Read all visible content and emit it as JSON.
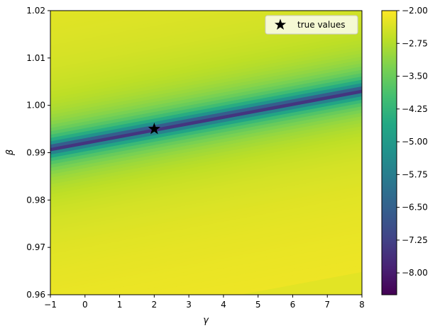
{
  "chart_data": {
    "type": "contour",
    "xlabel": "γ",
    "ylabel": "β",
    "xlim": [
      -1,
      8
    ],
    "ylim": [
      0.96,
      1.02
    ],
    "x_ticks": [
      {
        "value": -1,
        "label": "−1"
      },
      {
        "value": 0,
        "label": "0"
      },
      {
        "value": 1,
        "label": "1"
      },
      {
        "value": 2,
        "label": "2"
      },
      {
        "value": 3,
        "label": "3"
      },
      {
        "value": 4,
        "label": "4"
      },
      {
        "value": 5,
        "label": "5"
      },
      {
        "value": 6,
        "label": "6"
      },
      {
        "value": 7,
        "label": "7"
      },
      {
        "value": 8,
        "label": "8"
      }
    ],
    "y_ticks": [
      {
        "value": 0.96,
        "label": "0.96"
      },
      {
        "value": 0.97,
        "label": "0.97"
      },
      {
        "value": 0.98,
        "label": "0.98"
      },
      {
        "value": 0.99,
        "label": "0.99"
      },
      {
        "value": 1.0,
        "label": "1.00"
      },
      {
        "value": 1.01,
        "label": "1.01"
      },
      {
        "value": 1.02,
        "label": "1.02"
      }
    ],
    "colorbar": {
      "colormap": "viridis",
      "range": [
        -8.5,
        -2.0
      ],
      "ticks": [
        {
          "value": -2.0,
          "label": "−2.00"
        },
        {
          "value": -2.75,
          "label": "−2.75"
        },
        {
          "value": -3.5,
          "label": "−3.50"
        },
        {
          "value": -4.25,
          "label": "−4.25"
        },
        {
          "value": -5.0,
          "label": "−5.00"
        },
        {
          "value": -5.75,
          "label": "−5.75"
        },
        {
          "value": -6.5,
          "label": "−6.50"
        },
        {
          "value": -7.25,
          "label": "−7.25"
        },
        {
          "value": -8.0,
          "label": "−8.00"
        }
      ]
    },
    "valley": {
      "x": [
        -1,
        8
      ],
      "y": [
        0.9905,
        1.0028
      ]
    },
    "marker": {
      "label": "true values",
      "x": 2,
      "y": 0.995,
      "symbol": "star",
      "color": "#000000"
    },
    "legend_position": "top-right",
    "grid": false
  }
}
